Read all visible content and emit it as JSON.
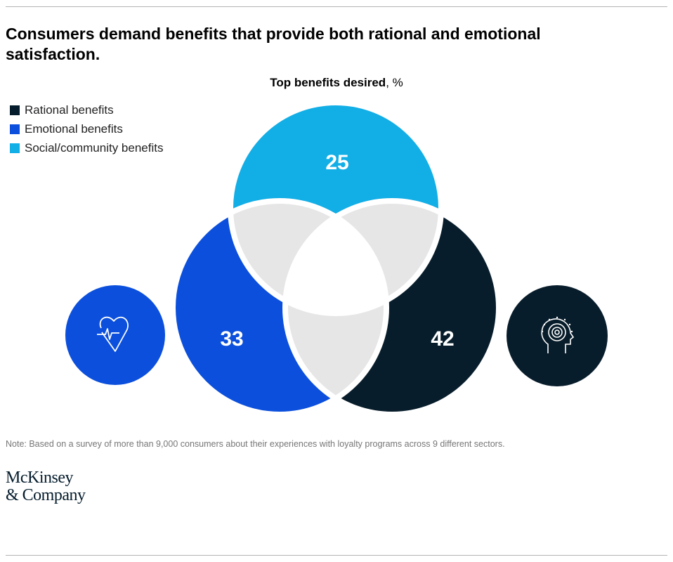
{
  "title": "Consumers demand benefits that provide both rational and emotional satisfaction.",
  "chart_data": {
    "type": "venn",
    "title": "Top benefits desired",
    "unit": "%",
    "series": [
      {
        "name": "Rational benefits",
        "value": 42,
        "color": "#051c2c",
        "icon": "head-brain-icon"
      },
      {
        "name": "Emotional benefits",
        "value": 33,
        "color": "#0b4fdc",
        "icon": "heart-pulse-icon"
      },
      {
        "name": "Social/community benefits",
        "value": 25,
        "color": "#12aee6"
      }
    ],
    "legend_position": "top-left",
    "labels": {
      "rational": "42",
      "emotional": "33",
      "social": "25"
    }
  },
  "note": "Note: Based on a survey of more than 9,000 consumers about their experiences with loyalty programs across 9 different sectors.",
  "logo": {
    "line1": "McKinsey",
    "line2": "& Company"
  },
  "colors": {
    "overlap": "#e6e6e6"
  }
}
